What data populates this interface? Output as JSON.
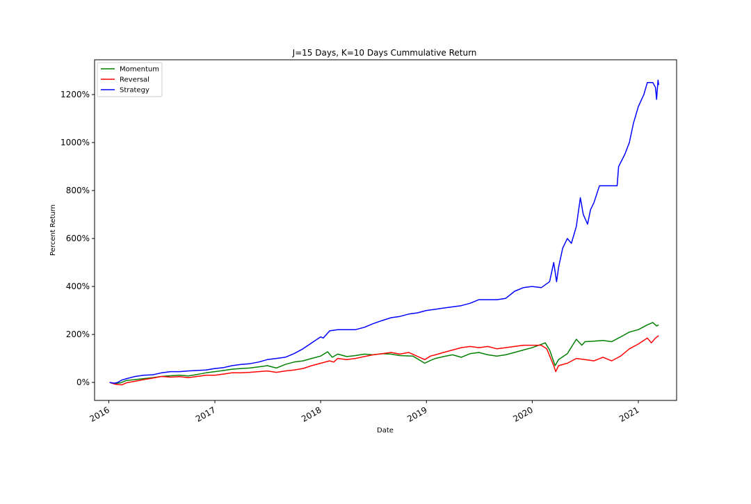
{
  "chart_data": {
    "type": "line",
    "title": "J=15 Days, K=10 Days Cummulative Return",
    "xlabel": "Date",
    "ylabel": "Percent Return",
    "x_type": "date",
    "xlim": [
      "2015-11-13",
      "2021-05-13"
    ],
    "ylim": [
      -75,
      1345
    ],
    "x_ticks": [
      "2016-01-01",
      "2017-01-01",
      "2018-01-01",
      "2019-01-01",
      "2020-01-01",
      "2021-01-01"
    ],
    "x_tick_labels": [
      "2016",
      "2017",
      "2018",
      "2019",
      "2020",
      "2021"
    ],
    "y_ticks": [
      0,
      200,
      400,
      600,
      800,
      1000,
      1200
    ],
    "y_tick_labels": [
      "0%",
      "200%",
      "400%",
      "600%",
      "800%",
      "1000%",
      "1200%"
    ],
    "legend": {
      "position": "top-left",
      "entries": [
        "Momentum",
        "Reversal",
        "Strategy"
      ]
    },
    "grid": false,
    "series": [
      {
        "name": "Momentum",
        "color": "#008000",
        "points": [
          [
            "2016-01-04",
            0
          ],
          [
            "2016-01-20",
            -5
          ],
          [
            "2016-02-10",
            -2
          ],
          [
            "2016-03-01",
            8
          ],
          [
            "2016-04-01",
            12
          ],
          [
            "2016-05-01",
            16
          ],
          [
            "2016-06-01",
            20
          ],
          [
            "2016-07-01",
            25
          ],
          [
            "2016-08-01",
            28
          ],
          [
            "2016-09-01",
            30
          ],
          [
            "2016-10-01",
            27
          ],
          [
            "2016-11-01",
            33
          ],
          [
            "2016-12-01",
            40
          ],
          [
            "2017-01-01",
            45
          ],
          [
            "2017-02-01",
            50
          ],
          [
            "2017-03-01",
            55
          ],
          [
            "2017-04-01",
            58
          ],
          [
            "2017-05-01",
            60
          ],
          [
            "2017-06-01",
            65
          ],
          [
            "2017-07-01",
            70
          ],
          [
            "2017-08-01",
            60
          ],
          [
            "2017-09-01",
            75
          ],
          [
            "2017-10-01",
            85
          ],
          [
            "2017-11-01",
            90
          ],
          [
            "2017-12-01",
            100
          ],
          [
            "2018-01-01",
            110
          ],
          [
            "2018-01-25",
            128
          ],
          [
            "2018-02-10",
            105
          ],
          [
            "2018-03-01",
            118
          ],
          [
            "2018-04-01",
            108
          ],
          [
            "2018-05-01",
            112
          ],
          [
            "2018-06-01",
            118
          ],
          [
            "2018-07-01",
            115
          ],
          [
            "2018-08-01",
            120
          ],
          [
            "2018-09-01",
            118
          ],
          [
            "2018-10-01",
            112
          ],
          [
            "2018-11-15",
            110
          ],
          [
            "2018-12-26",
            80
          ],
          [
            "2019-01-15",
            92
          ],
          [
            "2019-02-01",
            100
          ],
          [
            "2019-03-01",
            108
          ],
          [
            "2019-04-01",
            115
          ],
          [
            "2019-05-01",
            105
          ],
          [
            "2019-06-01",
            120
          ],
          [
            "2019-07-01",
            125
          ],
          [
            "2019-08-01",
            115
          ],
          [
            "2019-09-01",
            110
          ],
          [
            "2019-10-01",
            115
          ],
          [
            "2019-11-01",
            125
          ],
          [
            "2019-12-01",
            135
          ],
          [
            "2020-01-01",
            145
          ],
          [
            "2020-02-15",
            165
          ],
          [
            "2020-03-01",
            135
          ],
          [
            "2020-03-20",
            70
          ],
          [
            "2020-04-01",
            95
          ],
          [
            "2020-05-01",
            120
          ],
          [
            "2020-06-01",
            180
          ],
          [
            "2020-06-20",
            155
          ],
          [
            "2020-07-01",
            170
          ],
          [
            "2020-08-01",
            172
          ],
          [
            "2020-09-01",
            175
          ],
          [
            "2020-10-01",
            170
          ],
          [
            "2020-11-01",
            190
          ],
          [
            "2020-12-01",
            210
          ],
          [
            "2021-01-01",
            220
          ],
          [
            "2021-02-01",
            240
          ],
          [
            "2021-02-20",
            250
          ],
          [
            "2021-03-05",
            235
          ],
          [
            "2021-03-12",
            240
          ]
        ]
      },
      {
        "name": "Reversal",
        "color": "#ff0000",
        "points": [
          [
            "2016-01-04",
            0
          ],
          [
            "2016-01-25",
            -8
          ],
          [
            "2016-02-15",
            -10
          ],
          [
            "2016-03-01",
            -2
          ],
          [
            "2016-04-01",
            5
          ],
          [
            "2016-05-01",
            12
          ],
          [
            "2016-06-01",
            18
          ],
          [
            "2016-07-01",
            25
          ],
          [
            "2016-08-01",
            22
          ],
          [
            "2016-09-01",
            24
          ],
          [
            "2016-10-01",
            20
          ],
          [
            "2016-11-01",
            25
          ],
          [
            "2016-12-01",
            30
          ],
          [
            "2017-01-01",
            30
          ],
          [
            "2017-02-01",
            35
          ],
          [
            "2017-03-01",
            40
          ],
          [
            "2017-04-01",
            40
          ],
          [
            "2017-05-01",
            42
          ],
          [
            "2017-06-01",
            45
          ],
          [
            "2017-07-01",
            48
          ],
          [
            "2017-08-01",
            42
          ],
          [
            "2017-09-01",
            48
          ],
          [
            "2017-10-01",
            52
          ],
          [
            "2017-11-01",
            58
          ],
          [
            "2017-12-01",
            70
          ],
          [
            "2018-01-01",
            80
          ],
          [
            "2018-02-01",
            90
          ],
          [
            "2018-02-15",
            85
          ],
          [
            "2018-03-01",
            100
          ],
          [
            "2018-04-01",
            95
          ],
          [
            "2018-05-01",
            100
          ],
          [
            "2018-06-01",
            108
          ],
          [
            "2018-07-01",
            115
          ],
          [
            "2018-08-01",
            120
          ],
          [
            "2018-09-01",
            125
          ],
          [
            "2018-10-01",
            118
          ],
          [
            "2018-11-01",
            125
          ],
          [
            "2018-12-26",
            95
          ],
          [
            "2019-01-15",
            110
          ],
          [
            "2019-02-01",
            115
          ],
          [
            "2019-03-01",
            125
          ],
          [
            "2019-04-01",
            135
          ],
          [
            "2019-05-01",
            145
          ],
          [
            "2019-06-01",
            150
          ],
          [
            "2019-07-01",
            145
          ],
          [
            "2019-08-01",
            150
          ],
          [
            "2019-09-01",
            140
          ],
          [
            "2019-10-01",
            145
          ],
          [
            "2019-11-01",
            150
          ],
          [
            "2019-12-01",
            155
          ],
          [
            "2020-01-01",
            155
          ],
          [
            "2020-02-01",
            155
          ],
          [
            "2020-02-20",
            140
          ],
          [
            "2020-03-15",
            70
          ],
          [
            "2020-03-22",
            45
          ],
          [
            "2020-04-01",
            70
          ],
          [
            "2020-05-01",
            80
          ],
          [
            "2020-06-01",
            100
          ],
          [
            "2020-07-01",
            95
          ],
          [
            "2020-08-01",
            90
          ],
          [
            "2020-09-01",
            105
          ],
          [
            "2020-10-01",
            90
          ],
          [
            "2020-11-01",
            110
          ],
          [
            "2020-12-01",
            140
          ],
          [
            "2021-01-01",
            160
          ],
          [
            "2021-02-01",
            185
          ],
          [
            "2021-02-15",
            165
          ],
          [
            "2021-03-01",
            185
          ],
          [
            "2021-03-12",
            195
          ]
        ]
      },
      {
        "name": "Strategy",
        "color": "#0000ff",
        "points": [
          [
            "2016-01-04",
            0
          ],
          [
            "2016-01-20",
            -3
          ],
          [
            "2016-02-01",
            0
          ],
          [
            "2016-02-15",
            10
          ],
          [
            "2016-03-01",
            15
          ],
          [
            "2016-04-01",
            25
          ],
          [
            "2016-05-01",
            30
          ],
          [
            "2016-06-01",
            32
          ],
          [
            "2016-07-01",
            40
          ],
          [
            "2016-08-01",
            45
          ],
          [
            "2016-09-01",
            45
          ],
          [
            "2016-10-01",
            48
          ],
          [
            "2016-11-01",
            50
          ],
          [
            "2016-12-01",
            52
          ],
          [
            "2017-01-01",
            58
          ],
          [
            "2017-02-01",
            62
          ],
          [
            "2017-03-01",
            70
          ],
          [
            "2017-04-01",
            75
          ],
          [
            "2017-05-01",
            78
          ],
          [
            "2017-06-01",
            85
          ],
          [
            "2017-07-01",
            95
          ],
          [
            "2017-08-01",
            100
          ],
          [
            "2017-09-01",
            105
          ],
          [
            "2017-10-01",
            120
          ],
          [
            "2017-11-01",
            140
          ],
          [
            "2017-12-01",
            165
          ],
          [
            "2018-01-01",
            190
          ],
          [
            "2018-01-10",
            185
          ],
          [
            "2018-02-01",
            215
          ],
          [
            "2018-03-01",
            220
          ],
          [
            "2018-04-01",
            220
          ],
          [
            "2018-05-01",
            220
          ],
          [
            "2018-06-01",
            230
          ],
          [
            "2018-07-01",
            245
          ],
          [
            "2018-08-01",
            258
          ],
          [
            "2018-09-01",
            270
          ],
          [
            "2018-10-01",
            275
          ],
          [
            "2018-11-01",
            285
          ],
          [
            "2018-12-01",
            290
          ],
          [
            "2019-01-01",
            300
          ],
          [
            "2019-02-01",
            305
          ],
          [
            "2019-03-01",
            310
          ],
          [
            "2019-04-01",
            315
          ],
          [
            "2019-05-01",
            320
          ],
          [
            "2019-06-01",
            330
          ],
          [
            "2019-07-01",
            345
          ],
          [
            "2019-08-01",
            345
          ],
          [
            "2019-09-01",
            345
          ],
          [
            "2019-10-01",
            350
          ],
          [
            "2019-11-01",
            380
          ],
          [
            "2019-12-01",
            395
          ],
          [
            "2020-01-01",
            400
          ],
          [
            "2020-02-01",
            395
          ],
          [
            "2020-03-01",
            420
          ],
          [
            "2020-03-15",
            500
          ],
          [
            "2020-03-25",
            420
          ],
          [
            "2020-04-01",
            480
          ],
          [
            "2020-04-15",
            560
          ],
          [
            "2020-05-01",
            600
          ],
          [
            "2020-05-15",
            580
          ],
          [
            "2020-06-01",
            650
          ],
          [
            "2020-06-15",
            770
          ],
          [
            "2020-06-25",
            700
          ],
          [
            "2020-07-10",
            660
          ],
          [
            "2020-07-20",
            720
          ],
          [
            "2020-08-01",
            750
          ],
          [
            "2020-08-20",
            820
          ],
          [
            "2020-09-01",
            820
          ],
          [
            "2020-10-01",
            820
          ],
          [
            "2020-10-20",
            820
          ],
          [
            "2020-10-25",
            900
          ],
          [
            "2020-11-15",
            950
          ],
          [
            "2020-12-01",
            1000
          ],
          [
            "2020-12-15",
            1080
          ],
          [
            "2021-01-01",
            1150
          ],
          [
            "2021-01-20",
            1200
          ],
          [
            "2021-02-01",
            1250
          ],
          [
            "2021-02-20",
            1250
          ],
          [
            "2021-03-01",
            1230
          ],
          [
            "2021-03-05",
            1180
          ],
          [
            "2021-03-10",
            1260
          ],
          [
            "2021-03-12",
            1240
          ]
        ]
      }
    ]
  }
}
